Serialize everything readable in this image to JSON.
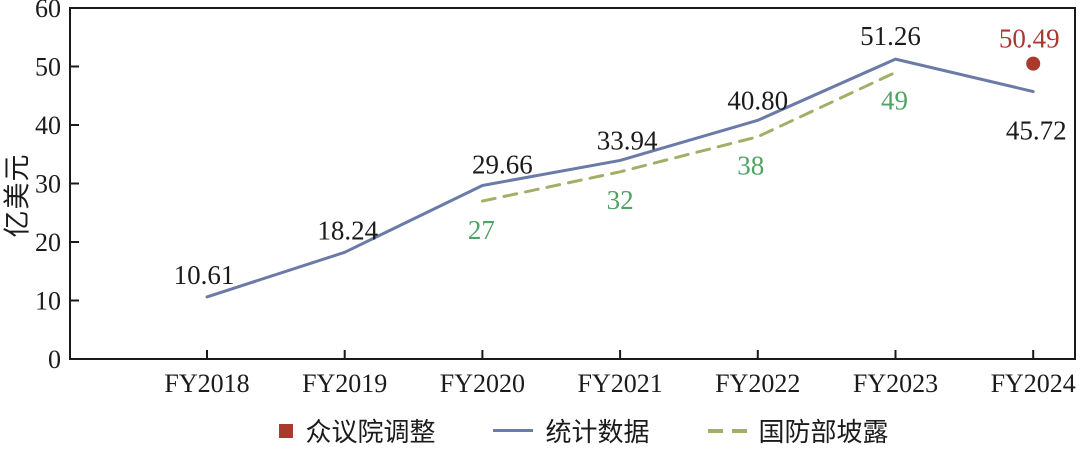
{
  "figure": {
    "background": "#ffffff"
  },
  "chart_data": {
    "type": "line",
    "title": "",
    "xlabel": "",
    "ylabel": "亿美元",
    "ylim": [
      0,
      60
    ],
    "ytick_step": 10,
    "ytick_labels": [
      "0",
      "10",
      "20",
      "30",
      "40",
      "50",
      "60"
    ],
    "grid": false,
    "frame": "full-box",
    "tick_direction": "in",
    "axis_color": "#1a1a1a",
    "categories": [
      "FY2018",
      "FY2019",
      "FY2020",
      "FY2021",
      "FY2022",
      "FY2023",
      "FY2024"
    ],
    "series": [
      {
        "name": "统计数据",
        "kind": "line",
        "color": "#6b7ba8",
        "x": [
          "FY2018",
          "FY2019",
          "FY2020",
          "FY2021",
          "FY2022",
          "FY2023",
          "FY2024"
        ],
        "values": [
          10.61,
          18.24,
          29.66,
          33.94,
          40.8,
          51.26,
          45.72
        ],
        "point_labels": [
          "10.61",
          "18.24",
          "29.66",
          "33.94",
          "40.80",
          "51.26",
          "45.72"
        ],
        "label_color": "#1b1b1b"
      },
      {
        "name": "国防部坡露",
        "kind": "dashed-line",
        "color": "#a2af67",
        "x": [
          "FY2020",
          "FY2021",
          "FY2022",
          "FY2023"
        ],
        "values": [
          27,
          32,
          38,
          49
        ],
        "point_labels": [
          "27",
          "32",
          "38",
          "49"
        ],
        "label_color": "#4fa364"
      },
      {
        "name": "众议院调整",
        "kind": "scatter",
        "color": "#a93a2c",
        "x": [
          "FY2024"
        ],
        "values": [
          50.49
        ],
        "point_labels": [
          "50.49"
        ],
        "label_color": "#a9392e"
      }
    ],
    "legend": {
      "position": "bottom",
      "items": [
        {
          "label": "众议院调整",
          "marker": "square",
          "color": "#a93a2c"
        },
        {
          "label": "统计数据",
          "marker": "line",
          "color": "#6b7ba8"
        },
        {
          "label": "国防部坡露",
          "marker": "dashes",
          "color": "#a2af67"
        }
      ]
    }
  }
}
